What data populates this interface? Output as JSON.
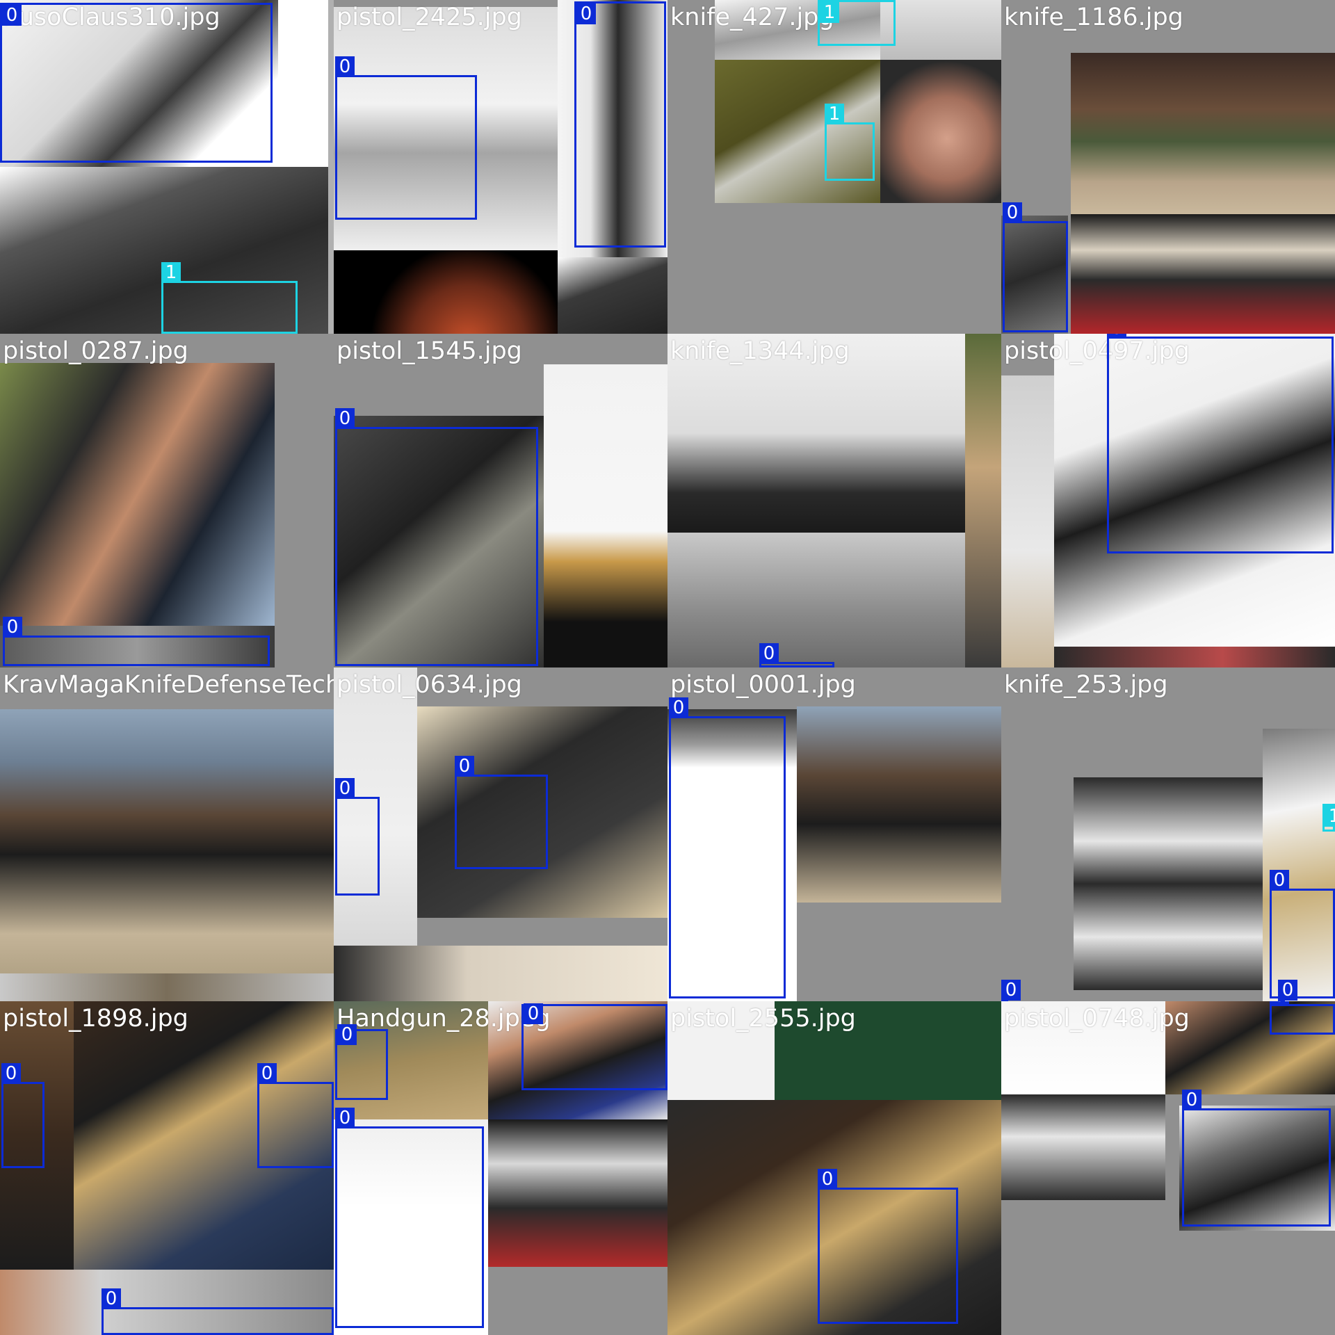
{
  "tiles": [
    {
      "label": "RusoClaus310.jpg",
      "boxes": [
        {
          "cls": "0"
        },
        {
          "cls": "1"
        }
      ]
    },
    {
      "label": "pistol_2425.jpg",
      "boxes": [
        {
          "cls": "0"
        },
        {
          "cls": "0"
        }
      ]
    },
    {
      "label": "knife_427.jpg",
      "boxes": [
        {
          "cls": "1"
        },
        {
          "cls": "1"
        }
      ]
    },
    {
      "label": "knife_1186.jpg",
      "boxes": [
        {
          "cls": "0"
        }
      ]
    },
    {
      "label": "pistol_0287.jpg",
      "boxes": [
        {
          "cls": "0"
        }
      ]
    },
    {
      "label": "pistol_1545.jpg",
      "boxes": [
        {
          "cls": "0"
        }
      ]
    },
    {
      "label": "knife_1344.jpg",
      "boxes": [
        {
          "cls": "0"
        }
      ]
    },
    {
      "label": "pistol_0497.jpg",
      "boxes": [
        {
          "cls": "0"
        }
      ]
    },
    {
      "label": "KravMagaKnifeDefenseTech",
      "boxes": []
    },
    {
      "label": "pistol_0634.jpg",
      "boxes": [
        {
          "cls": "0"
        },
        {
          "cls": "0"
        }
      ]
    },
    {
      "label": "pistol_0001.jpg",
      "boxes": [
        {
          "cls": "0"
        }
      ]
    },
    {
      "label": "knife_253.jpg",
      "boxes": [
        {
          "cls": "1"
        },
        {
          "cls": "0"
        },
        {
          "cls": "0"
        },
        {
          "cls": "0"
        }
      ]
    },
    {
      "label": "pistol_1898.jpg",
      "boxes": [
        {
          "cls": "0"
        },
        {
          "cls": "0"
        },
        {
          "cls": "0"
        }
      ]
    },
    {
      "label": "Handgun_28.jpeg",
      "boxes": [
        {
          "cls": "0"
        },
        {
          "cls": "0"
        },
        {
          "cls": "0"
        }
      ]
    },
    {
      "label": "pistol_2555.jpg",
      "boxes": [
        {
          "cls": "0"
        }
      ]
    },
    {
      "label": "pistol_0748.jpg",
      "boxes": [
        {
          "cls": "0"
        },
        {
          "cls": "0"
        }
      ]
    }
  ],
  "colors": {
    "class_0": "#0c2bd6",
    "class_1": "#1dd3e3",
    "letterbox": "#909090"
  }
}
